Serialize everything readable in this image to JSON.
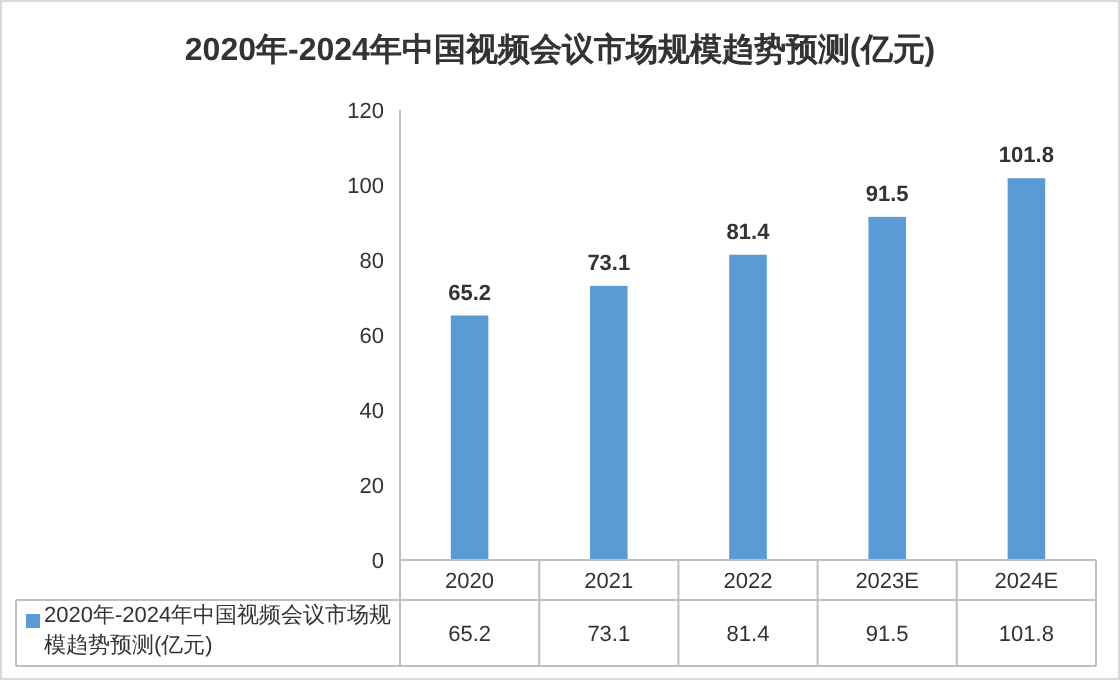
{
  "chart_data": {
    "type": "bar",
    "title": "2020年-2024年中国视频会议市场规模趋势预测(亿元)",
    "categories": [
      "2020",
      "2021",
      "2022",
      "2023E",
      "2024E"
    ],
    "series": [
      {
        "name": "2020年-2024年中国视频会议市场规模趋势预测(亿元)",
        "color": "#5b9bd5",
        "values": [
          65.2,
          73.1,
          81.4,
          91.5,
          101.8
        ],
        "value_labels": [
          "65.2",
          "73.1",
          "81.4",
          "91.5",
          "101.8"
        ]
      }
    ],
    "annotations": [
      "65.2",
      "73.1",
      "81.4",
      "91.5",
      "101.8"
    ],
    "ylim": [
      0,
      120
    ],
    "yticks": [
      0,
      20,
      40,
      60,
      80,
      100,
      120
    ],
    "data_labels": true,
    "legend": "bottom"
  }
}
